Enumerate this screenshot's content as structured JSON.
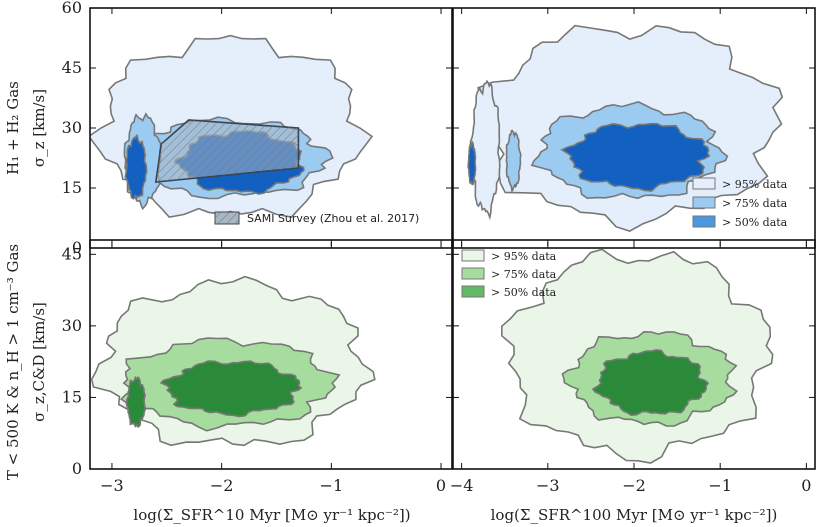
{
  "figure": {
    "panels": [
      {
        "id": "top-left",
        "xlim": [
          -3.2,
          0.1
        ],
        "ylim": [
          0,
          60
        ],
        "xticks": [
          -3,
          -2,
          -1,
          0
        ],
        "yticks": [
          0,
          15,
          30,
          45,
          60
        ],
        "show_xtick_labels": false,
        "palette": "blue",
        "blobs": [
          {
            "level": "95",
            "cx": -1.92,
            "cy": 30,
            "rx": 1.18,
            "ry": 22
          },
          {
            "level": "75",
            "cx": -1.95,
            "cy": 22.5,
            "rx": 0.9,
            "ry": 9.5
          },
          {
            "level": "75",
            "cx": -2.72,
            "cy": 22,
            "rx": 0.16,
            "ry": 11
          },
          {
            "level": "50",
            "cx": -1.82,
            "cy": 21.5,
            "rx": 0.55,
            "ry": 7.5
          },
          {
            "level": "50",
            "cx": -2.78,
            "cy": 20,
            "rx": 0.09,
            "ry": 7.5
          }
        ],
        "sami_region": [
          [
            -2.55,
            26
          ],
          [
            -2.3,
            32
          ],
          [
            -1.3,
            30
          ],
          [
            -1.3,
            20
          ],
          [
            -2.6,
            16.5
          ]
        ]
      },
      {
        "id": "top-right",
        "xlim": [
          -4.1,
          0.1
        ],
        "ylim": [
          0,
          60
        ],
        "xticks": [
          -4,
          -3,
          -2,
          -1,
          0
        ],
        "yticks": [
          0,
          15,
          30,
          45,
          60
        ],
        "show_xtick_labels": false,
        "palette": "blue",
        "blobs": [
          {
            "level": "95",
            "cx": -2.05,
            "cy": 31,
            "rx": 1.7,
            "ry": 24
          },
          {
            "level": "95",
            "cx": -3.72,
            "cy": 25,
            "rx": 0.16,
            "ry": 16
          },
          {
            "level": "75",
            "cx": -2.05,
            "cy": 24,
            "rx": 1.05,
            "ry": 11.5
          },
          {
            "level": "75",
            "cx": -3.4,
            "cy": 22,
            "rx": 0.08,
            "ry": 7
          },
          {
            "level": "50",
            "cx": -1.95,
            "cy": 23,
            "rx": 0.8,
            "ry": 8
          },
          {
            "level": "50",
            "cx": -3.88,
            "cy": 21,
            "rx": 0.04,
            "ry": 5
          }
        ]
      },
      {
        "id": "bottom-left",
        "xlim": [
          -3.2,
          0.1
        ],
        "ylim": [
          0,
          48
        ],
        "xticks": [
          -3,
          -2,
          -1,
          0
        ],
        "yticks": [
          0,
          15,
          30,
          45
        ],
        "show_xtick_labels": true,
        "palette": "green",
        "blobs": [
          {
            "level": "95",
            "cx": -1.9,
            "cy": 22,
            "rx": 1.2,
            "ry": 17
          },
          {
            "level": "75",
            "cx": -1.95,
            "cy": 18,
            "rx": 0.95,
            "ry": 9
          },
          {
            "level": "50",
            "cx": -1.9,
            "cy": 17,
            "rx": 0.6,
            "ry": 5.5
          },
          {
            "level": "50",
            "cx": -2.78,
            "cy": 14,
            "rx": 0.08,
            "ry": 5
          }
        ]
      },
      {
        "id": "bottom-right",
        "xlim": [
          -4.1,
          0.1
        ],
        "ylim": [
          0,
          48
        ],
        "xticks": [
          -4,
          -3,
          -2,
          -1,
          0
        ],
        "yticks": [
          0,
          15,
          30,
          45
        ],
        "show_xtick_labels": true,
        "palette": "green",
        "blobs": [
          {
            "level": "95",
            "cx": -1.95,
            "cy": 24,
            "rx": 1.5,
            "ry": 21
          },
          {
            "level": "75",
            "cx": -1.8,
            "cy": 19,
            "rx": 0.95,
            "ry": 9.5
          },
          {
            "level": "50",
            "cx": -1.8,
            "cy": 18,
            "rx": 0.62,
            "ry": 6.5
          }
        ]
      }
    ],
    "legend_entries": [
      "> 95% data",
      "> 75% data",
      "> 50% data"
    ],
    "sami_label": "SAMI Survey (Zhou et al. 2017)",
    "y_outer_label_top": "H₁ + H₂ Gas",
    "y_inner_label_top": "σ_z [km/s]",
    "y_outer_label_bottom": "T < 500 K & n_H > 1 cm⁻³ Gas",
    "y_inner_label_bottom": "σ_z,C&D [km/s]",
    "x_label_left": "log(Σ_SFR^10 Myr [M⊙ yr⁻¹ kpc⁻²])",
    "x_label_right": "log(Σ_SFR^100 Myr [M⊙ yr⁻¹ kpc⁻²])"
  },
  "colors": {
    "blue": {
      "95": "#e4effb",
      "75": "#9ccbf2",
      "50": "#4a98e0",
      "core": "#1260c0"
    },
    "green": {
      "95": "#eaf6e7",
      "75": "#a6dc9e",
      "50": "#62ba66",
      "core": "#2a8a3a"
    },
    "outline": "#777777"
  },
  "chart_data": [
    {
      "type": "contour",
      "panel": "top-left",
      "xlabel": "",
      "ylabel": "σ_z [km/s]",
      "xlim": [
        -3.2,
        0.1
      ],
      "ylim": [
        0,
        60
      ],
      "series": [
        {
          "name": "> 95% data",
          "x_range": [
            -3.1,
            -0.75
          ],
          "y_range": [
            3,
            54
          ]
        },
        {
          "name": "> 75% data",
          "x_range": [
            -2.85,
            -1.05
          ],
          "y_range": [
            11,
            32
          ]
        },
        {
          "name": "> 50% data",
          "x_range": [
            -2.85,
            -1.25
          ],
          "y_range": [
            13,
            29
          ]
        },
        {
          "name": "SAMI Survey (Zhou et al. 2017)",
          "x_range": [
            -2.6,
            -1.3
          ],
          "y_range": [
            16.5,
            32
          ]
        }
      ]
    },
    {
      "type": "contour",
      "panel": "top-right",
      "xlim": [
        -4.1,
        0.1
      ],
      "ylim": [
        0,
        60
      ],
      "series": [
        {
          "name": "> 95% data",
          "x_range": [
            -3.9,
            -0.4
          ],
          "y_range": [
            4,
            56
          ]
        },
        {
          "name": "> 75% data",
          "x_range": [
            -3.45,
            -1.0
          ],
          "y_range": [
            12,
            36
          ]
        },
        {
          "name": "> 50% data",
          "x_range": [
            -2.75,
            -1.15
          ],
          "y_range": [
            15,
            34
          ]
        }
      ]
    },
    {
      "type": "contour",
      "panel": "bottom-left",
      "xlabel": "log(Σ_SFR^10 Myr [M⊙ yr⁻¹ kpc⁻²])",
      "ylabel": "σ_z,C&D [km/s]",
      "xlim": [
        -3.2,
        0.1
      ],
      "ylim": [
        0,
        48
      ],
      "series": [
        {
          "name": "> 95% data",
          "x_range": [
            -3.1,
            -0.7
          ],
          "y_range": [
            4,
            40
          ]
        },
        {
          "name": "> 75% data",
          "x_range": [
            -2.9,
            -1.0
          ],
          "y_range": [
            9,
            27
          ]
        },
        {
          "name": "> 50% data",
          "x_range": [
            -2.85,
            -1.3
          ],
          "y_range": [
            11,
            23
          ]
        }
      ]
    },
    {
      "type": "contour",
      "panel": "bottom-right",
      "xlabel": "log(Σ_SFR^100 Myr [M⊙ yr⁻¹ kpc⁻²])",
      "xlim": [
        -4.1,
        0.1
      ],
      "ylim": [
        0,
        48
      ],
      "series": [
        {
          "name": "> 95% data",
          "x_range": [
            -3.6,
            -0.5
          ],
          "y_range": [
            3,
            45
          ]
        },
        {
          "name": "> 75% data",
          "x_range": [
            -2.75,
            -0.85
          ],
          "y_range": [
            9,
            30
          ]
        },
        {
          "name": "> 50% data",
          "x_range": [
            -2.4,
            -1.2
          ],
          "y_range": [
            11,
            25
          ]
        }
      ]
    }
  ]
}
